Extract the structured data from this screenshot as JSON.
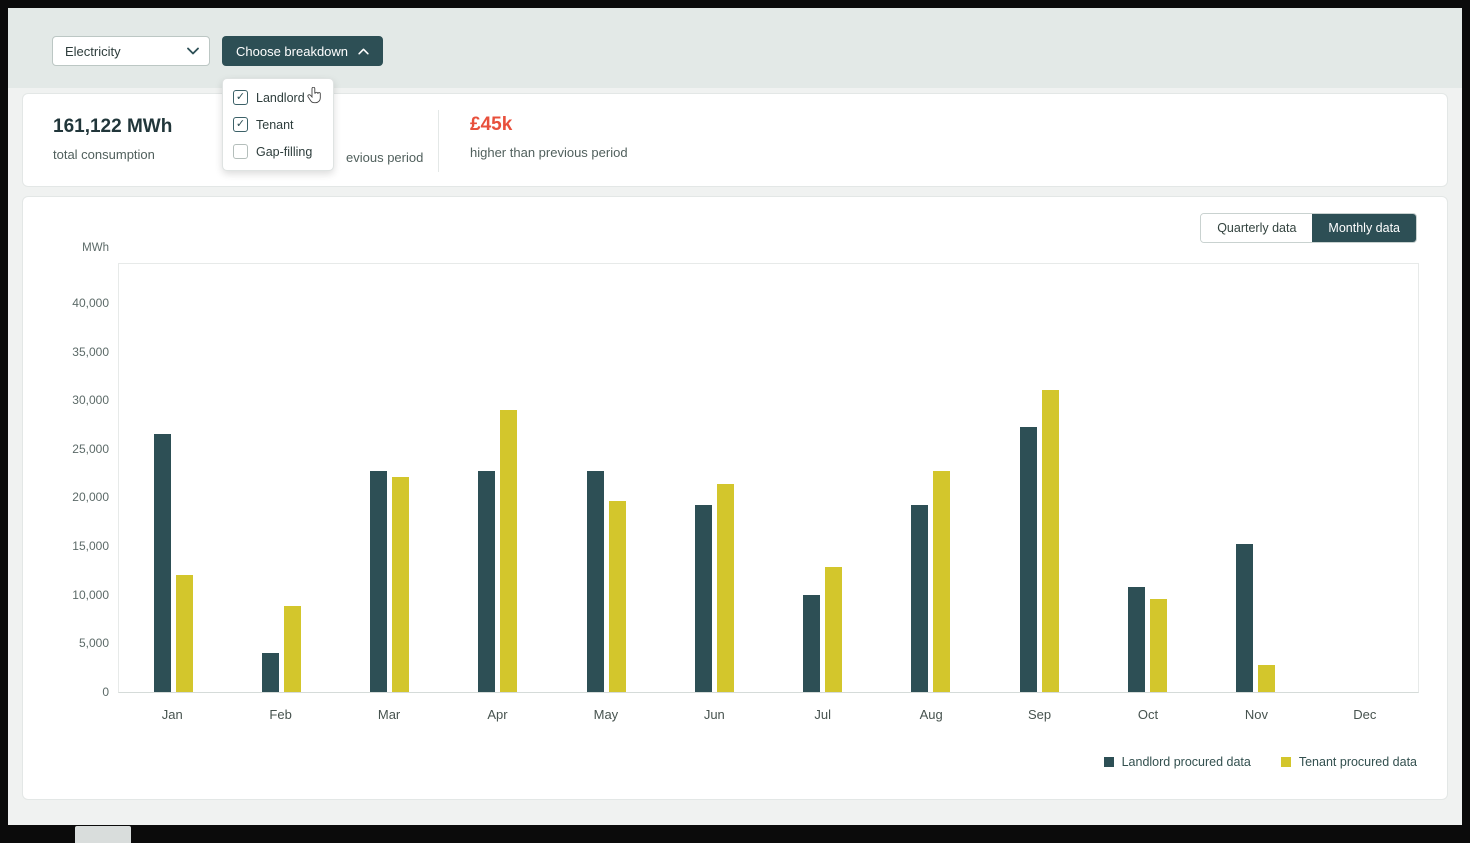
{
  "topbar": {
    "utility_select": {
      "value": "Electricity"
    },
    "breakdown_button": {
      "label": "Choose breakdown"
    },
    "breakdown_menu": {
      "items": [
        {
          "label": "Landlord",
          "checked": true
        },
        {
          "label": "Tenant",
          "checked": true
        },
        {
          "label": "Gap-filling",
          "checked": false
        }
      ]
    }
  },
  "stats": {
    "total": {
      "value": "161,122 MWh",
      "label": "total consumption"
    },
    "middle_partial_label": "evious period",
    "cost": {
      "value": "£45k",
      "label": "higher than previous period",
      "color": "#e8503c"
    }
  },
  "chart_card": {
    "toggle": {
      "options": [
        "Quarterly data",
        "Monthly data"
      ],
      "selected": "Monthly data"
    },
    "axis_unit": "MWh",
    "legend": [
      {
        "label": "Landlord procured data",
        "color": "#2d4f55"
      },
      {
        "label": "Tenant procured data",
        "color": "#d3c62c"
      }
    ]
  },
  "chart_data": {
    "type": "bar",
    "title": "",
    "categories": [
      "Jan",
      "Feb",
      "Mar",
      "Apr",
      "May",
      "Jun",
      "Jul",
      "Aug",
      "Sep",
      "Oct",
      "Nov",
      "Dec"
    ],
    "series": [
      {
        "name": "Landlord procured data",
        "color": "#2d4f55",
        "values": [
          26500,
          4000,
          22700,
          22700,
          22700,
          19200,
          10000,
          19200,
          27200,
          10800,
          15200,
          0
        ]
      },
      {
        "name": "Tenant procured data",
        "color": "#d3c62c",
        "values": [
          12000,
          8800,
          22100,
          29000,
          19600,
          21400,
          12900,
          22700,
          31000,
          9600,
          2800,
          0
        ]
      }
    ],
    "xlabel": "",
    "ylabel": "MWh",
    "ylim": [
      0,
      40000
    ],
    "plot_max": 44000,
    "yticks": [
      0,
      5000,
      10000,
      15000,
      20000,
      25000,
      30000,
      35000,
      40000
    ],
    "grid": false,
    "legend_position": "bottom-right"
  },
  "colors": {
    "brand_teal": "#2d4f55",
    "accent_yellow": "#d3c62c",
    "alert_red": "#e8503c",
    "topbar_bg": "#e3e9e7",
    "page_bg": "#f0f2f1"
  }
}
